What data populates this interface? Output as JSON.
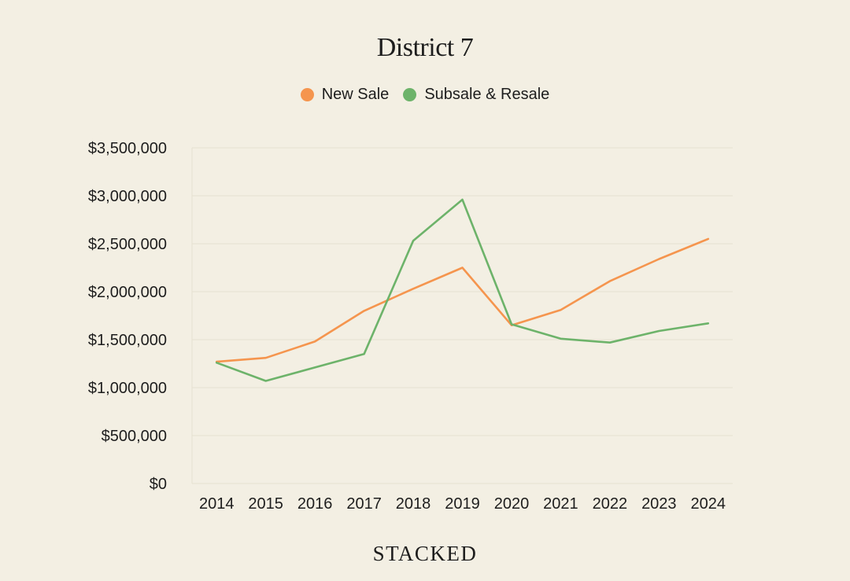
{
  "chart_data": {
    "type": "line",
    "title": "District 7",
    "xlabel": "",
    "ylabel": "",
    "categories": [
      "2014",
      "2015",
      "2016",
      "2017",
      "2018",
      "2019",
      "2020",
      "2021",
      "2022",
      "2023",
      "2024"
    ],
    "ylim": [
      0,
      3500000
    ],
    "yticks": [
      0,
      500000,
      1000000,
      1500000,
      2000000,
      2500000,
      3000000,
      3500000
    ],
    "ytick_labels": [
      "$0",
      "$500,000",
      "$1,000,000",
      "$1,500,000",
      "$2,000,000",
      "$2,500,000",
      "$3,000,000",
      "$3,500,000"
    ],
    "grid": true,
    "legend_position": "top-center",
    "series": [
      {
        "name": "New Sale",
        "color": "#f5954e",
        "values": [
          1270000,
          1310000,
          1480000,
          1800000,
          2030000,
          2250000,
          1650000,
          1810000,
          2110000,
          2340000,
          2550000
        ]
      },
      {
        "name": "Subsale & Resale",
        "color": "#6db36a",
        "values": [
          1260000,
          1070000,
          1210000,
          1350000,
          2530000,
          2960000,
          1660000,
          1510000,
          1470000,
          1590000,
          1670000
        ]
      }
    ]
  },
  "footer": "STACKED"
}
